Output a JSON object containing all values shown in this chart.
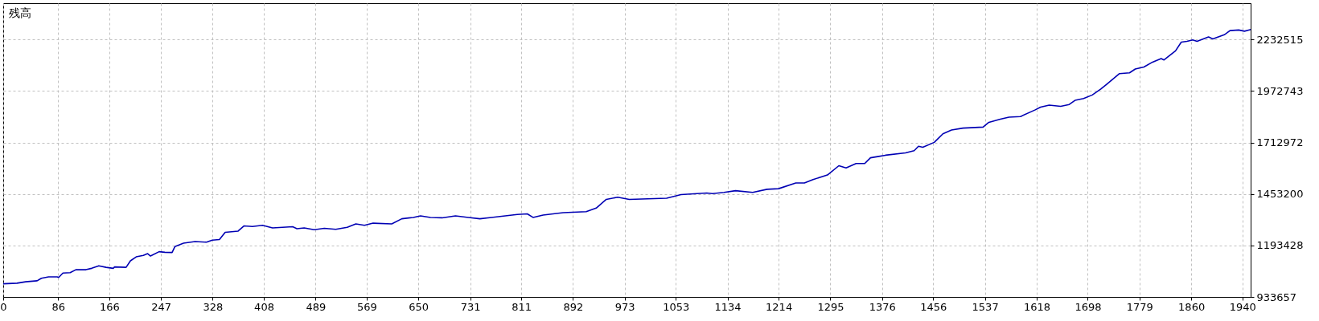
{
  "chart_data": {
    "type": "line",
    "title": "残高",
    "x": [
      0,
      21.6,
      35.1,
      53.1,
      59.8,
      71,
      84.5,
      86.8,
      93.5,
      104.8,
      113.7,
      129.5,
      138.5,
      149.7,
      161,
      172.2,
      174.4,
      192.4,
      199.2,
      208.2,
      219.4,
      226.1,
      230.6,
      244.1,
      253.1,
      264.4,
      268.9,
      282.3,
      300.3,
      318.3,
      327.3,
      338.5,
      347.5,
      367.8,
      376.8,
      390.2,
      406,
      421.7,
      453.2,
      459.9,
      471.2,
      486.9,
      502.7,
      520.6,
      538.6,
      552.1,
      565.6,
      579.1,
      608.3,
      624,
      642,
      653.3,
      669,
      687,
      708.1,
      728.4,
      746.3,
      764.3,
      804.8,
      820.5,
      829.5,
      845.2,
      876.7,
      912.7,
      928.4,
      944.2,
      962.1,
      980.1,
      1038.6,
      1061.1,
      1101.5,
      1110.5,
      1128.5,
      1146.5,
      1173.4,
      1195.9,
      1213.9,
      1240.9,
      1254.4,
      1267.9,
      1290.4,
      1308.3,
      1319.6,
      1335.3,
      1348.8,
      1357.8,
      1369,
      1381.3,
      1412.7,
      1426.2,
      1433,
      1439.7,
      1457.7,
      1471.2,
      1484.7,
      1502.7,
      1534.1,
      1543.1,
      1561.1,
      1574.6,
      1592.6,
      1615.1,
      1624.1,
      1637.6,
      1655.6,
      1669,
      1678,
      1691.5,
      1705,
      1718.5,
      1727.5,
      1747.7,
      1763.4,
      1772.4,
      1785.9,
      1799.4,
      1812.9,
      1817.4,
      1835.4,
      1844.4,
      1853.3,
      1862.3,
      1869.1,
      1887.1,
      1893.8,
      1911.8,
      1920.8,
      1934.3,
      1943.3,
      1952.3
    ],
    "series": [
      {
        "color": "#0000b4",
        "values": [
          1000000,
          1003000,
          1010000,
          1015000,
          1028000,
          1035000,
          1035000,
          1032000,
          1054000,
          1056000,
          1071000,
          1071000,
          1078000,
          1091000,
          1083000,
          1078000,
          1085000,
          1083000,
          1116000,
          1136000,
          1143000,
          1152000,
          1140000,
          1162000,
          1159000,
          1158000,
          1188000,
          1205000,
          1213000,
          1210000,
          1220000,
          1223000,
          1260000,
          1266000,
          1292000,
          1289000,
          1295000,
          1282000,
          1288000,
          1278000,
          1282000,
          1273000,
          1280000,
          1275000,
          1285000,
          1302000,
          1295000,
          1306000,
          1302000,
          1328000,
          1335000,
          1343000,
          1335000,
          1333000,
          1343000,
          1335000,
          1328000,
          1335000,
          1350000,
          1353000,
          1335000,
          1347000,
          1359000,
          1364000,
          1382000,
          1426000,
          1437000,
          1426000,
          1432000,
          1450000,
          1458000,
          1455000,
          1461000,
          1470000,
          1461000,
          1477000,
          1480000,
          1509000,
          1509000,
          1526000,
          1549000,
          1596000,
          1585000,
          1607000,
          1607000,
          1636000,
          1642000,
          1649000,
          1661000,
          1672000,
          1694000,
          1689000,
          1714000,
          1757000,
          1776000,
          1786000,
          1791000,
          1815000,
          1831000,
          1841000,
          1844000,
          1877000,
          1892000,
          1902000,
          1896000,
          1905000,
          1926000,
          1935000,
          1953000,
          1983000,
          2007000,
          2061000,
          2065000,
          2084000,
          2094000,
          2119000,
          2137000,
          2130000,
          2176000,
          2220000,
          2224000,
          2231000,
          2224000,
          2246000,
          2236000,
          2257000,
          2278000,
          2281000,
          2275000,
          2283000
        ]
      }
    ],
    "xlim": [
      0,
      1953
    ],
    "xticks": [
      0,
      86,
      166,
      247,
      328,
      408,
      489,
      569,
      650,
      731,
      811,
      892,
      973,
      1053,
      1134,
      1214,
      1295,
      1376,
      1456,
      1537,
      1618,
      1698,
      1779,
      1860,
      1940
    ],
    "ylim": [
      933657,
      2416300
    ],
    "yticks": [
      933657,
      1193428,
      1453200,
      1712972,
      1972743,
      2232515
    ],
    "grid": true
  }
}
